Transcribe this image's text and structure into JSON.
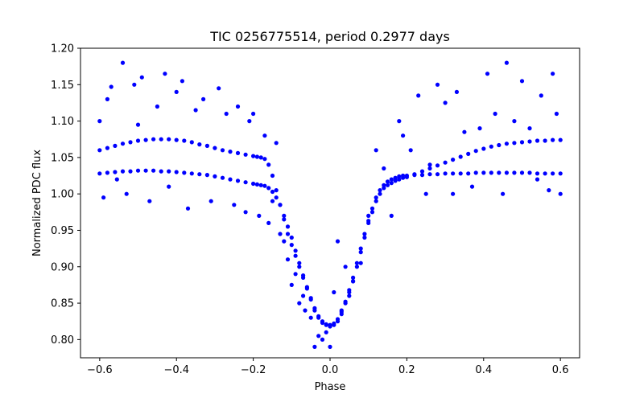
{
  "chart_data": {
    "type": "scatter",
    "title": "TIC 0256775514, period 0.2977 days",
    "xlabel": "Phase",
    "ylabel": "Normalized PDC flux",
    "xlim": [
      -0.65,
      0.65
    ],
    "ylim": [
      0.775,
      1.2
    ],
    "xticks": [
      -0.6,
      -0.4,
      -0.2,
      0.0,
      0.2,
      0.4,
      0.6
    ],
    "xtick_labels": [
      "−0.6",
      "−0.4",
      "−0.2",
      "0.0",
      "0.2",
      "0.4",
      "0.6"
    ],
    "yticks": [
      0.8,
      0.85,
      0.9,
      0.95,
      1.0,
      1.05,
      1.1,
      1.15,
      1.2
    ],
    "ytick_labels": [
      "0.80",
      "0.85",
      "0.90",
      "0.95",
      "1.00",
      "1.05",
      "1.10",
      "1.15",
      "1.20"
    ],
    "grid": false,
    "legend": "none",
    "marker_color": "#0000ff",
    "series": [
      {
        "x": [
          -0.6,
          -0.58,
          -0.56,
          -0.54,
          -0.52,
          -0.5,
          -0.48,
          -0.46,
          -0.44,
          -0.42,
          -0.4,
          -0.38,
          -0.36,
          -0.34,
          -0.32,
          -0.3,
          -0.28,
          -0.26,
          -0.24,
          -0.22,
          -0.2,
          -0.19,
          -0.18,
          -0.17,
          -0.16,
          -0.15,
          -0.14,
          -0.13,
          -0.12,
          -0.11,
          -0.1,
          -0.09,
          -0.08,
          -0.07,
          -0.06,
          -0.05,
          -0.04,
          -0.03,
          -0.02,
          -0.01,
          0.0,
          0.01,
          0.02,
          0.03,
          0.04,
          0.05,
          0.06,
          0.07,
          0.08,
          0.09,
          0.1,
          0.11,
          0.12,
          0.13,
          0.14,
          0.15,
          0.16,
          0.17,
          0.18,
          0.19,
          0.2,
          0.22,
          0.24,
          0.26,
          0.28,
          0.3,
          0.32,
          0.34,
          0.36,
          0.38,
          0.4,
          0.42,
          0.44,
          0.46,
          0.48,
          0.5,
          0.52,
          0.54,
          0.56,
          0.58,
          0.6
        ],
        "y": [
          1.06,
          1.063,
          1.066,
          1.069,
          1.071,
          1.073,
          1.074,
          1.075,
          1.075,
          1.075,
          1.074,
          1.073,
          1.071,
          1.068,
          1.066,
          1.063,
          1.06,
          1.058,
          1.056,
          1.054,
          1.052,
          1.051,
          1.05,
          1.048,
          1.04,
          1.025,
          1.005,
          0.985,
          0.965,
          0.945,
          0.93,
          0.915,
          0.9,
          0.885,
          0.87,
          0.855,
          0.84,
          0.83,
          0.823,
          0.82,
          0.818,
          0.82,
          0.825,
          0.835,
          0.85,
          0.865,
          0.88,
          0.9,
          0.92,
          0.94,
          0.96,
          0.975,
          0.99,
          1.0,
          1.008,
          1.012,
          1.015,
          1.018,
          1.02,
          1.022,
          1.023,
          1.027,
          1.031,
          1.035,
          1.039,
          1.043,
          1.047,
          1.051,
          1.055,
          1.059,
          1.062,
          1.065,
          1.067,
          1.069,
          1.07,
          1.071,
          1.072,
          1.073,
          1.073,
          1.074,
          1.074
        ]
      },
      {
        "x": [
          -0.6,
          -0.58,
          -0.56,
          -0.54,
          -0.52,
          -0.5,
          -0.48,
          -0.46,
          -0.44,
          -0.42,
          -0.4,
          -0.38,
          -0.36,
          -0.34,
          -0.32,
          -0.3,
          -0.28,
          -0.26,
          -0.24,
          -0.22,
          -0.2,
          -0.19,
          -0.18,
          -0.17,
          -0.16,
          -0.15,
          -0.14,
          -0.13,
          -0.12,
          -0.11,
          -0.1,
          -0.09,
          -0.08,
          -0.07,
          -0.06,
          -0.05,
          -0.04,
          -0.03,
          -0.02,
          -0.01,
          0.0,
          0.01,
          0.02,
          0.03,
          0.04,
          0.05,
          0.06,
          0.07,
          0.08,
          0.09,
          0.1,
          0.11,
          0.12,
          0.13,
          0.14,
          0.15,
          0.16,
          0.17,
          0.18,
          0.19,
          0.2,
          0.22,
          0.24,
          0.26,
          0.28,
          0.3,
          0.32,
          0.34,
          0.36,
          0.38,
          0.4,
          0.42,
          0.44,
          0.46,
          0.48,
          0.5,
          0.52,
          0.54,
          0.56,
          0.58,
          0.6
        ],
        "y": [
          1.028,
          1.029,
          1.03,
          1.031,
          1.031,
          1.032,
          1.032,
          1.032,
          1.031,
          1.031,
          1.03,
          1.029,
          1.028,
          1.027,
          1.026,
          1.024,
          1.022,
          1.02,
          1.018,
          1.016,
          1.014,
          1.013,
          1.012,
          1.011,
          1.008,
          1.003,
          0.995,
          0.985,
          0.97,
          0.955,
          0.94,
          0.922,
          0.905,
          0.888,
          0.872,
          0.857,
          0.843,
          0.832,
          0.825,
          0.821,
          0.82,
          0.822,
          0.828,
          0.838,
          0.852,
          0.868,
          0.885,
          0.905,
          0.925,
          0.945,
          0.963,
          0.98,
          0.995,
          1.005,
          1.012,
          1.017,
          1.02,
          1.022,
          1.024,
          1.025,
          1.025,
          1.026,
          1.026,
          1.027,
          1.027,
          1.028,
          1.028,
          1.028,
          1.028,
          1.029,
          1.029,
          1.029,
          1.029,
          1.029,
          1.029,
          1.029,
          1.029,
          1.028,
          1.028,
          1.028,
          1.028
        ]
      },
      {
        "x": [
          -0.6,
          -0.59,
          -0.58,
          -0.57,
          -0.555,
          -0.54,
          -0.53,
          -0.51,
          -0.5,
          -0.49,
          -0.47,
          -0.45,
          -0.43,
          -0.42,
          -0.4,
          -0.385,
          -0.37,
          -0.35,
          -0.33,
          -0.31,
          -0.29,
          -0.27,
          -0.25,
          -0.24,
          -0.22,
          -0.21,
          -0.2,
          -0.185,
          -0.17,
          -0.16,
          -0.15,
          -0.14,
          -0.13,
          -0.12,
          -0.11,
          -0.1,
          -0.09,
          -0.08,
          -0.07,
          -0.065,
          -0.05,
          -0.04,
          -0.03,
          -0.02,
          -0.01,
          0.0,
          0.01,
          0.02,
          0.03,
          0.04,
          0.05,
          0.06,
          0.08,
          0.1,
          0.12,
          0.14,
          0.16,
          0.18,
          0.19,
          0.21,
          0.23,
          0.25,
          0.26,
          0.28,
          0.3,
          0.32,
          0.33,
          0.35,
          0.37,
          0.39,
          0.41,
          0.43,
          0.45,
          0.46,
          0.48,
          0.5,
          0.52,
          0.54,
          0.55,
          0.57,
          0.58,
          0.59,
          0.6
        ],
        "y": [
          1.1,
          0.995,
          1.13,
          1.147,
          1.02,
          1.18,
          1.0,
          1.15,
          1.095,
          1.16,
          0.99,
          1.12,
          1.165,
          1.01,
          1.14,
          1.155,
          0.98,
          1.115,
          1.13,
          0.99,
          1.145,
          1.11,
          0.985,
          1.12,
          0.975,
          1.1,
          1.11,
          0.97,
          1.08,
          0.96,
          0.99,
          1.07,
          0.945,
          0.935,
          0.91,
          0.875,
          0.89,
          0.85,
          0.86,
          0.84,
          0.83,
          0.79,
          0.805,
          0.8,
          0.81,
          0.79,
          0.865,
          0.935,
          0.84,
          0.9,
          0.86,
          0.88,
          0.905,
          0.97,
          1.06,
          1.035,
          0.97,
          1.1,
          1.08,
          1.06,
          1.135,
          1.0,
          1.04,
          1.15,
          1.125,
          1.0,
          1.14,
          1.085,
          1.01,
          1.09,
          1.165,
          1.11,
          1.0,
          1.18,
          1.1,
          1.155,
          1.09,
          1.02,
          1.135,
          1.005,
          1.165,
          1.11,
          1.0
        ]
      }
    ]
  }
}
